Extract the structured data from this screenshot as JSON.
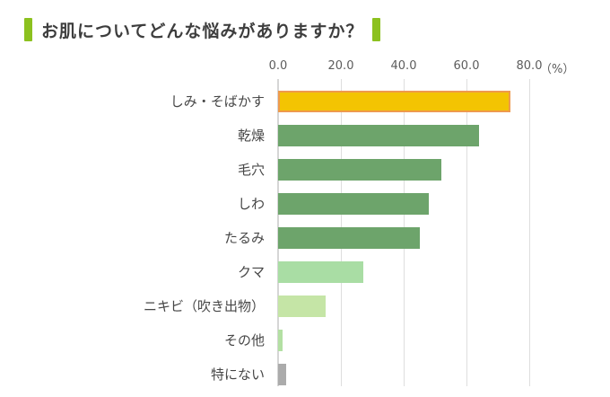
{
  "title": {
    "text": "お肌についてどんな悩みがありますか？",
    "accent_color": "#8cc11f"
  },
  "chart_data": {
    "type": "bar",
    "orientation": "horizontal",
    "title": "お肌についてどんな悩みがありますか？",
    "categories": [
      "しみ・そばかす",
      "乾燥",
      "毛穴",
      "しわ",
      "たるみ",
      "クマ",
      "ニキビ（吹き出物）",
      "その他",
      "特にない"
    ],
    "values": [
      74,
      64,
      52,
      48,
      45,
      27,
      15,
      1.5,
      2.5
    ],
    "bar_colors": [
      "#f3c402",
      "#6da46b",
      "#6da46b",
      "#6da46b",
      "#6da46b",
      "#a9dda4",
      "#c5e5a6",
      "#b3e0a3",
      "#ababab"
    ],
    "highlight_index": 0,
    "highlight_border_color": "#ee9a4e",
    "x_ticks": [
      "0.0",
      "20.0",
      "40.0",
      "60.0",
      "80.0"
    ],
    "x_tick_values": [
      0,
      20,
      40,
      60,
      80
    ],
    "unit_label": "（%）",
    "xlabel": "",
    "ylabel": "",
    "xlim": [
      0,
      80
    ],
    "grid": true,
    "gridline_color": "#dedede",
    "legend": "none"
  }
}
